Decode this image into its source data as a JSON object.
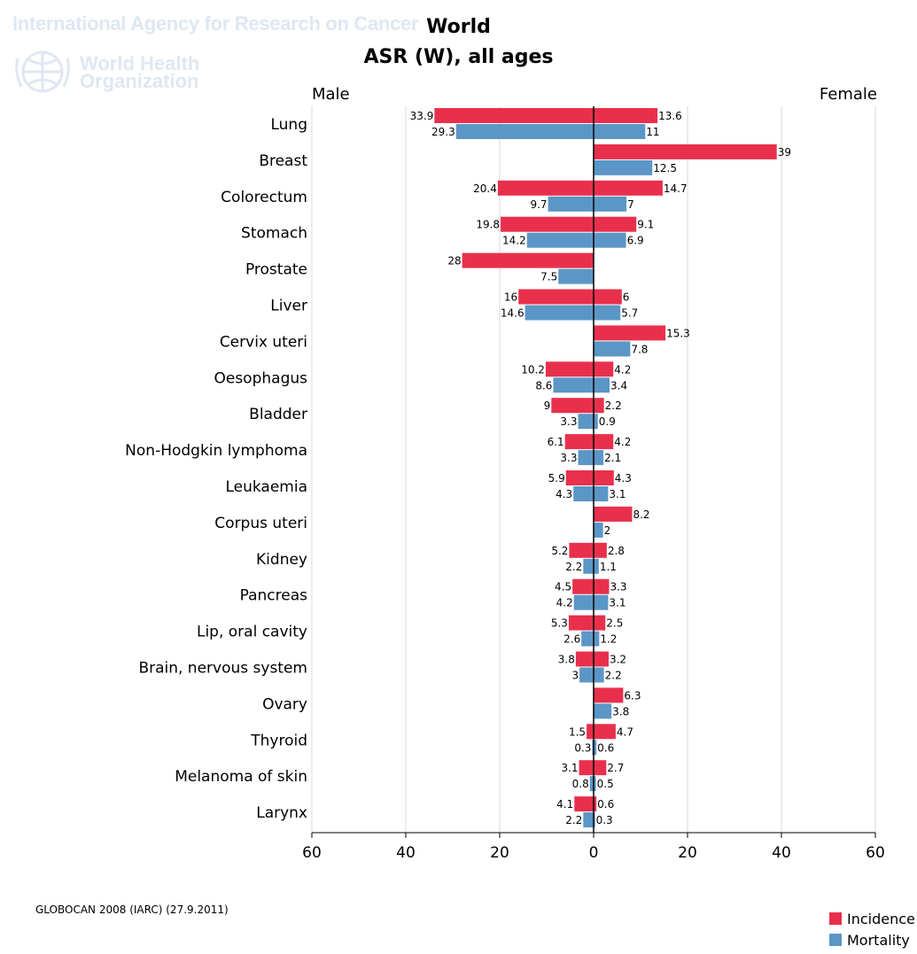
{
  "watermark": {
    "agency": "International Agency for Research on Cancer",
    "org_line1": "World Health",
    "org_line2": "Organization"
  },
  "header": {
    "title": "World",
    "subtitle": "ASR (W), all ages",
    "left_label": "Male",
    "right_label": "Female"
  },
  "footer": {
    "source": "GLOBOCAN 2008 (IARC) (27.9.2011)"
  },
  "colors": {
    "incidence": "#e8304c",
    "mortality": "#5b96c6"
  },
  "chart_data": {
    "type": "bar",
    "orientation": "horizontal",
    "layout": "population-pyramid",
    "title": "World",
    "subtitle": "ASR (W), all ages",
    "left_side": "Male",
    "right_side": "Female",
    "xlim": [
      -60,
      60
    ],
    "x_ticks": [
      -60,
      -40,
      -20,
      0,
      20,
      40,
      60
    ],
    "x_tick_labels": [
      "60",
      "40",
      "20",
      "0",
      "20",
      "40",
      "60"
    ],
    "grid": true,
    "legend_position": "bottom-right",
    "legend": [
      "Incidence",
      "Mortality"
    ],
    "categories": [
      "Lung",
      "Breast",
      "Colorectum",
      "Stomach",
      "Prostate",
      "Liver",
      "Cervix uteri",
      "Oesophagus",
      "Bladder",
      "Non-Hodgkin lymphoma",
      "Leukaemia",
      "Corpus uteri",
      "Kidney",
      "Pancreas",
      "Lip, oral cavity",
      "Brain, nervous system",
      "Ovary",
      "Thyroid",
      "Melanoma of skin",
      "Larynx"
    ],
    "series": [
      {
        "name": "Incidence",
        "side": "Male",
        "values": [
          33.9,
          null,
          20.4,
          19.8,
          28,
          16,
          null,
          10.2,
          9,
          6.1,
          5.9,
          null,
          5.2,
          4.5,
          5.3,
          3.8,
          null,
          1.5,
          3.1,
          4.1
        ]
      },
      {
        "name": "Mortality",
        "side": "Male",
        "values": [
          29.3,
          null,
          9.7,
          14.2,
          7.5,
          14.6,
          null,
          8.6,
          3.3,
          3.3,
          4.3,
          null,
          2.2,
          4.2,
          2.6,
          3,
          null,
          0.3,
          0.8,
          2.2
        ]
      },
      {
        "name": "Incidence",
        "side": "Female",
        "values": [
          13.6,
          39,
          14.7,
          9.1,
          null,
          6,
          15.3,
          4.2,
          2.2,
          4.2,
          4.3,
          8.2,
          2.8,
          3.3,
          2.5,
          3.2,
          6.3,
          4.7,
          2.7,
          0.6
        ]
      },
      {
        "name": "Mortality",
        "side": "Female",
        "values": [
          11,
          12.5,
          7,
          6.9,
          null,
          5.7,
          7.8,
          3.4,
          0.9,
          2.1,
          3.1,
          2,
          1.1,
          3.1,
          1.2,
          2.2,
          3.8,
          0.6,
          0.5,
          0.3
        ]
      }
    ]
  }
}
